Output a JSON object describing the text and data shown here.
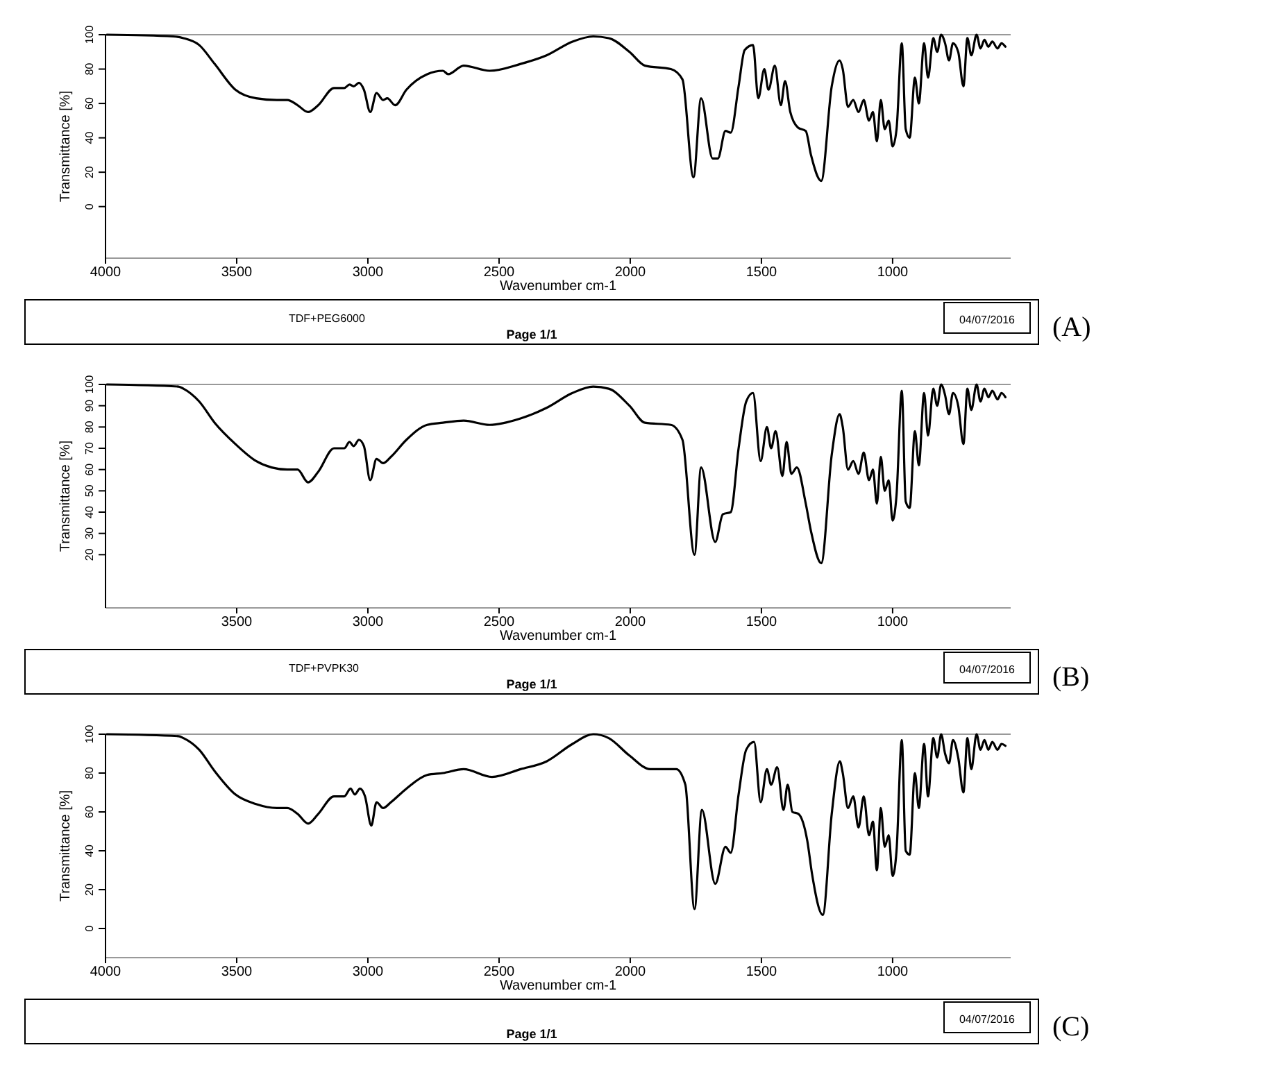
{
  "chart_data": [
    {
      "type": "line",
      "xlabel": "Wavenumber cm-1",
      "ylabel": "Transmittance [%]",
      "annotations": [
        "(A)",
        "TDF+PEG6000",
        "04/07/2016",
        "Page 1/1"
      ],
      "xlim": [
        4000,
        550
      ],
      "ylim": [
        -30,
        100
      ],
      "xticks": [
        4000,
        3500,
        3000,
        2500,
        2000,
        1500,
        1000
      ],
      "yticks": [
        0,
        20,
        40,
        60,
        80,
        100
      ],
      "x": [
        3995,
        3742,
        3703,
        3643,
        3584,
        3505,
        3426,
        3347,
        3307,
        3268,
        3228,
        3189,
        3129,
        3090,
        3070,
        3054,
        3034,
        3015,
        2991,
        2967,
        2942,
        2926,
        2896,
        2853,
        2774,
        2714,
        2694,
        2635,
        2536,
        2418,
        2319,
        2220,
        2141,
        2082,
        2003,
        1944,
        1845,
        1801,
        1759,
        1730,
        1686,
        1666,
        1637,
        1617,
        1587,
        1564,
        1532,
        1512,
        1489,
        1473,
        1449,
        1426,
        1410,
        1390,
        1361,
        1331,
        1311,
        1272,
        1232,
        1202,
        1190,
        1170,
        1150,
        1130,
        1110,
        1090,
        1075,
        1060,
        1045,
        1030,
        1015,
        1000,
        985,
        965,
        950,
        935,
        915,
        900,
        880,
        865,
        845,
        830,
        815,
        800,
        785,
        770,
        750,
        730,
        715,
        700,
        680,
        665,
        650,
        635,
        620,
        600,
        585,
        570
      ],
      "series": [
        {
          "color": "#000000",
          "values": [
            100,
            99,
            98,
            94,
            83,
            68,
            63,
            62,
            62,
            59,
            55,
            59,
            69,
            69,
            71,
            70,
            72,
            68,
            55,
            66,
            62,
            63,
            59,
            68,
            77,
            79,
            77,
            82,
            79,
            83,
            88,
            96,
            99,
            98,
            90,
            82,
            80,
            74,
            17,
            63,
            28,
            28,
            44,
            43,
            70,
            91,
            94,
            63,
            80,
            68,
            82,
            59,
            73,
            55,
            46,
            44,
            30,
            15,
            70,
            85,
            80,
            58,
            62,
            55,
            62,
            50,
            55,
            38,
            62,
            45,
            50,
            35,
            45,
            95,
            45,
            40,
            75,
            60,
            95,
            75,
            98,
            90,
            100,
            95,
            85,
            95,
            90,
            70,
            98,
            88,
            100,
            92,
            97,
            93,
            96,
            92,
            95,
            93
          ]
        }
      ]
    },
    {
      "type": "line",
      "xlabel": "Wavenumber cm-1",
      "ylabel": "Transmittance [%]",
      "annotations": [
        "(B)",
        "TDF+PVPK30",
        "04/07/2016",
        "Page 1/1"
      ],
      "xlim": [
        4000,
        550
      ],
      "ylim": [
        -5,
        100
      ],
      "xticks": [
        3500,
        3000,
        2500,
        2000,
        1500,
        1000
      ],
      "yticks": [
        20,
        30,
        40,
        50,
        60,
        70,
        80,
        90,
        100
      ],
      "x": [
        3995,
        3722,
        3703,
        3643,
        3584,
        3505,
        3426,
        3367,
        3307,
        3268,
        3228,
        3189,
        3129,
        3090,
        3070,
        3054,
        3034,
        3015,
        2991,
        2967,
        2942,
        2912,
        2853,
        2774,
        2714,
        2635,
        2536,
        2418,
        2319,
        2220,
        2141,
        2082,
        2003,
        1944,
        1845,
        1801,
        1755,
        1730,
        1676,
        1647,
        1617,
        1587,
        1558,
        1532,
        1503,
        1479,
        1463,
        1446,
        1420,
        1404,
        1386,
        1365,
        1331,
        1311,
        1272,
        1232,
        1202,
        1190,
        1170,
        1150,
        1130,
        1110,
        1090,
        1075,
        1060,
        1045,
        1030,
        1015,
        1000,
        985,
        965,
        950,
        935,
        915,
        900,
        880,
        865,
        845,
        830,
        815,
        800,
        785,
        770,
        750,
        730,
        715,
        700,
        680,
        665,
        650,
        635,
        620,
        600,
        585,
        570
      ],
      "series": [
        {
          "color": "#000000",
          "values": [
            100,
            99,
            98,
            92,
            82,
            72,
            64,
            61,
            60,
            60,
            54,
            59,
            70,
            70,
            73,
            71,
            74,
            71,
            55,
            65,
            63,
            66,
            74,
            81,
            82,
            83,
            81,
            84,
            89,
            96,
            99,
            98,
            90,
            82,
            81,
            74,
            20,
            61,
            26,
            39,
            40,
            70,
            92,
            96,
            64,
            80,
            70,
            78,
            57,
            73,
            58,
            61,
            44,
            31,
            16,
            67,
            86,
            80,
            60,
            64,
            58,
            68,
            55,
            60,
            44,
            66,
            50,
            55,
            36,
            48,
            97,
            45,
            42,
            78,
            62,
            96,
            76,
            98,
            90,
            100,
            95,
            86,
            96,
            90,
            72,
            98,
            88,
            100,
            92,
            98,
            94,
            97,
            93,
            96,
            94
          ]
        }
      ]
    },
    {
      "type": "line",
      "xlabel": "Wavenumber cm-1",
      "ylabel": "Transmittance [%]",
      "annotations": [
        "(C)",
        "04/07/2016",
        "Page 1/1"
      ],
      "xlim": [
        4000,
        550
      ],
      "ylim": [
        -15,
        100
      ],
      "xticks": [
        4000,
        3500,
        3000,
        2500,
        2000,
        1500,
        1000
      ],
      "yticks": [
        0,
        20,
        40,
        60,
        80,
        100
      ],
      "x": [
        3995,
        3722,
        3703,
        3643,
        3584,
        3505,
        3426,
        3347,
        3307,
        3268,
        3228,
        3189,
        3129,
        3090,
        3066,
        3050,
        3030,
        3011,
        2987,
        2967,
        2942,
        2912,
        2853,
        2774,
        2714,
        2635,
        2527,
        2418,
        2319,
        2220,
        2141,
        2082,
        2003,
        1924,
        1825,
        1790,
        1755,
        1727,
        1676,
        1637,
        1617,
        1587,
        1558,
        1528,
        1503,
        1479,
        1463,
        1440,
        1416,
        1400,
        1382,
        1359,
        1325,
        1307,
        1266,
        1232,
        1201,
        1190,
        1170,
        1150,
        1130,
        1110,
        1090,
        1075,
        1060,
        1045,
        1030,
        1015,
        1000,
        985,
        965,
        950,
        935,
        915,
        900,
        880,
        865,
        845,
        830,
        815,
        800,
        785,
        770,
        750,
        730,
        715,
        700,
        680,
        665,
        650,
        635,
        620,
        600,
        585,
        570
      ],
      "series": [
        {
          "color": "#000000",
          "values": [
            100,
            99,
            98,
            92,
            81,
            69,
            64,
            62,
            62,
            59,
            54,
            59,
            68,
            68,
            72,
            69,
            72,
            68,
            53,
            65,
            62,
            65,
            72,
            79,
            80,
            82,
            78,
            82,
            86,
            95,
            100,
            98,
            89,
            82,
            82,
            74,
            10,
            61,
            23,
            42,
            39,
            69,
            92,
            96,
            65,
            82,
            74,
            83,
            61,
            74,
            60,
            59,
            45,
            28,
            7,
            59,
            86,
            80,
            62,
            68,
            52,
            68,
            48,
            55,
            30,
            62,
            42,
            48,
            27,
            40,
            97,
            40,
            38,
            80,
            62,
            95,
            68,
            98,
            88,
            100,
            90,
            85,
            97,
            88,
            70,
            98,
            82,
            100,
            92,
            97,
            92,
            96,
            92,
            95,
            94
          ]
        }
      ]
    }
  ]
}
